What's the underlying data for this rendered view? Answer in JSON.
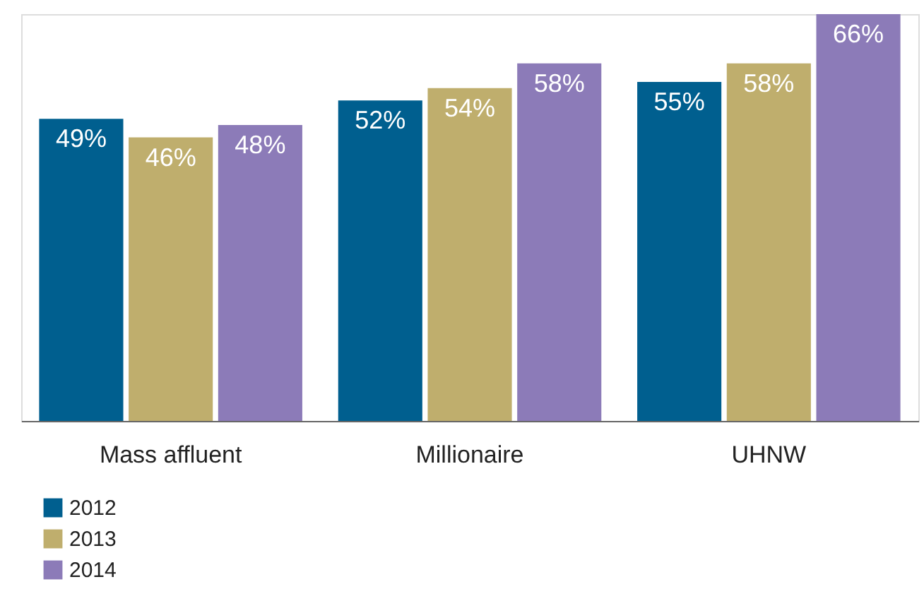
{
  "chart_data": {
    "type": "bar",
    "categories": [
      "Mass affluent",
      "Millionaire",
      "UHNW"
    ],
    "series": [
      {
        "name": "2012",
        "color": "#005f8f",
        "values": [
          49,
          52,
          55
        ],
        "value_labels": [
          "49%",
          "52%",
          "55%"
        ]
      },
      {
        "name": "2013",
        "color": "#bfae6d",
        "values": [
          46,
          54,
          58
        ],
        "value_labels": [
          "46%",
          "54%",
          "58%"
        ]
      },
      {
        "name": "2014",
        "color": "#8c7bb8",
        "values": [
          48,
          58,
          66
        ],
        "value_labels": [
          "48%",
          "58%",
          "66%"
        ]
      }
    ],
    "legend": "bottom left",
    "grid": false,
    "tick_labels": "x"
  }
}
